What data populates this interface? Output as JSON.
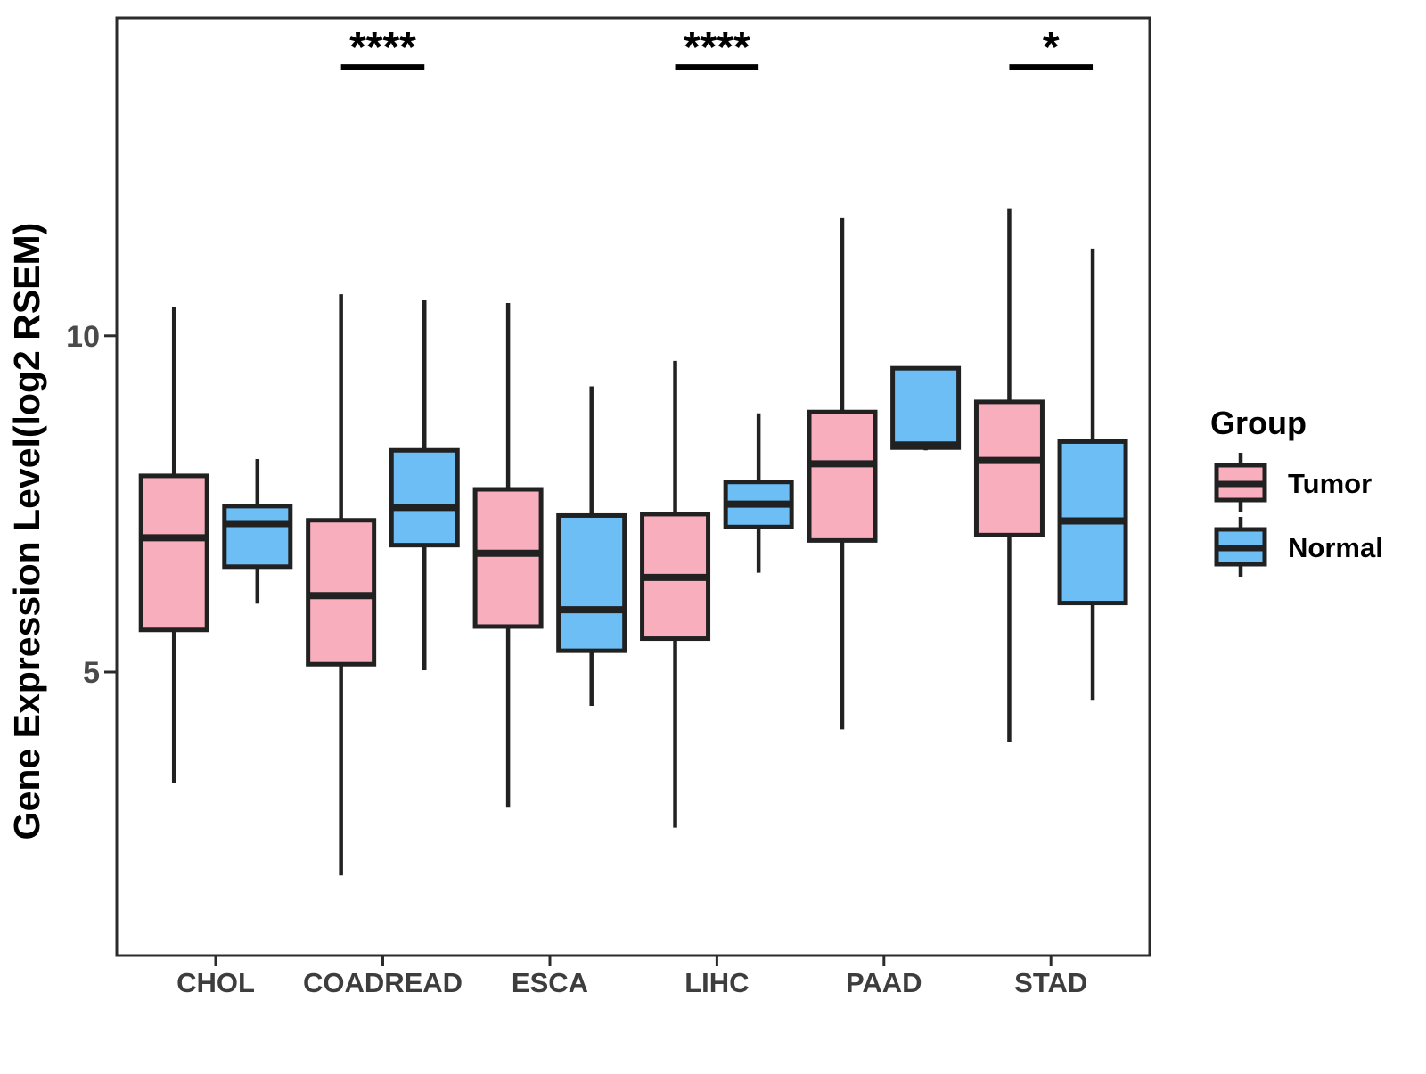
{
  "figure": {
    "background": "#ffffff",
    "y_axis_title": "Gene Expression Level(log2 RSEM)"
  },
  "chart_data": {
    "type": "boxplot",
    "title": "",
    "xlabel": "",
    "ylabel": "Gene Expression Level(log2 RSEM)",
    "categories": [
      "CHOL",
      "COADREAD",
      "ESCA",
      "LIHC",
      "PAAD",
      "STAD"
    ],
    "ylim": [
      0.79,
      14.73
    ],
    "yticks": [
      {
        "value": 5,
        "label": "5"
      },
      {
        "value": 10,
        "label": "10"
      }
    ],
    "grid": false,
    "legend_position": "right",
    "legend": {
      "title": "Group",
      "items": [
        {
          "label": "Tumor",
          "color": "#F9AEBD"
        },
        {
          "label": "Normal",
          "color": "#6CBEF5"
        }
      ]
    },
    "series": [
      {
        "name": "Tumor",
        "color": "#F9AEBD",
        "boxes": [
          {
            "category": "CHOL",
            "min": 3.35,
            "q1": 5.63,
            "median": 7.0,
            "q3": 7.92,
            "max": 10.43
          },
          {
            "category": "COADREAD",
            "min": 1.98,
            "q1": 5.12,
            "median": 6.14,
            "q3": 7.26,
            "max": 10.62
          },
          {
            "category": "ESCA",
            "min": 3.0,
            "q1": 5.68,
            "median": 6.77,
            "q3": 7.72,
            "max": 10.49
          },
          {
            "category": "LIHC",
            "min": 2.69,
            "q1": 5.5,
            "median": 6.41,
            "q3": 7.35,
            "max": 9.63
          },
          {
            "category": "PAAD",
            "min": 4.15,
            "q1": 6.96,
            "median": 8.1,
            "q3": 8.87,
            "max": 11.75
          },
          {
            "category": "STAD",
            "min": 3.97,
            "q1": 7.04,
            "median": 8.15,
            "q3": 9.02,
            "max": 11.9
          }
        ]
      },
      {
        "name": "Normal",
        "color": "#6CBEF5",
        "boxes": [
          {
            "category": "CHOL",
            "min": 6.02,
            "q1": 6.57,
            "median": 7.21,
            "q3": 7.47,
            "max": 8.17
          },
          {
            "category": "COADREAD",
            "min": 5.03,
            "q1": 6.89,
            "median": 7.45,
            "q3": 8.3,
            "max": 10.53
          },
          {
            "category": "ESCA",
            "min": 4.5,
            "q1": 5.32,
            "median": 5.93,
            "q3": 7.33,
            "max": 9.25
          },
          {
            "category": "LIHC",
            "min": 6.48,
            "q1": 7.16,
            "median": 7.5,
            "q3": 7.83,
            "max": 8.85
          },
          {
            "category": "PAAD",
            "min": 8.3,
            "q1": 8.34,
            "median": 8.38,
            "q3": 9.52,
            "max": 9.52
          },
          {
            "category": "STAD",
            "min": 4.59,
            "q1": 6.03,
            "median": 7.25,
            "q3": 8.43,
            "max": 11.3
          }
        ]
      }
    ],
    "annotations": [
      {
        "category": "COADREAD",
        "label": "****",
        "y_value": 14.0
      },
      {
        "category": "LIHC",
        "label": "****",
        "y_value": 14.0
      },
      {
        "category": "STAD",
        "label": "*",
        "y_value": 14.0
      }
    ],
    "style": {
      "box_stroke": "#212121",
      "whisker_stroke": "#212121",
      "median_stroke": "#212121"
    }
  }
}
